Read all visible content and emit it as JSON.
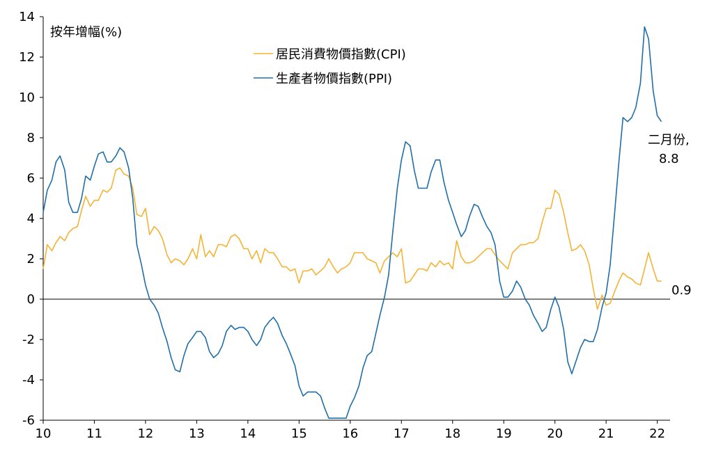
{
  "chart_data": {
    "type": "line",
    "ylabel": "按年增幅(%)",
    "ylim": [
      -6,
      14
    ],
    "yticks": [
      -6,
      -4,
      -2,
      0,
      2,
      4,
      6,
      8,
      10,
      12,
      14
    ],
    "xlim": [
      2010,
      2022.25
    ],
    "xticks": [
      {
        "value": 2010,
        "label": "10"
      },
      {
        "value": 2011,
        "label": "11"
      },
      {
        "value": 2012,
        "label": "12"
      },
      {
        "value": 2013,
        "label": "13"
      },
      {
        "value": 2014,
        "label": "14"
      },
      {
        "value": 2015,
        "label": "15"
      },
      {
        "value": 2016,
        "label": "16"
      },
      {
        "value": 2017,
        "label": "17"
      },
      {
        "value": 2018,
        "label": "18"
      },
      {
        "value": 2019,
        "label": "19"
      },
      {
        "value": 2020,
        "label": "20"
      },
      {
        "value": 2021,
        "label": "21"
      },
      {
        "value": 2022,
        "label": "22"
      }
    ],
    "legend_position": "top-center",
    "series": [
      {
        "name": "居民消費物價指數(CPI)",
        "color": "#f5b335",
        "points": [
          [
            2010.0,
            1.5
          ],
          [
            2010.08,
            2.7
          ],
          [
            2010.17,
            2.4
          ],
          [
            2010.25,
            2.8
          ],
          [
            2010.33,
            3.1
          ],
          [
            2010.42,
            2.9
          ],
          [
            2010.5,
            3.3
          ],
          [
            2010.58,
            3.5
          ],
          [
            2010.67,
            3.6
          ],
          [
            2010.75,
            4.4
          ],
          [
            2010.83,
            5.1
          ],
          [
            2010.92,
            4.6
          ],
          [
            2011.0,
            4.9
          ],
          [
            2011.08,
            4.9
          ],
          [
            2011.17,
            5.4
          ],
          [
            2011.25,
            5.3
          ],
          [
            2011.33,
            5.5
          ],
          [
            2011.42,
            6.4
          ],
          [
            2011.5,
            6.5
          ],
          [
            2011.58,
            6.2
          ],
          [
            2011.67,
            6.1
          ],
          [
            2011.75,
            5.5
          ],
          [
            2011.83,
            4.2
          ],
          [
            2011.92,
            4.1
          ],
          [
            2012.0,
            4.5
          ],
          [
            2012.08,
            3.2
          ],
          [
            2012.17,
            3.6
          ],
          [
            2012.25,
            3.4
          ],
          [
            2012.33,
            3.0
          ],
          [
            2012.42,
            2.2
          ],
          [
            2012.5,
            1.8
          ],
          [
            2012.58,
            2.0
          ],
          [
            2012.67,
            1.9
          ],
          [
            2012.75,
            1.7
          ],
          [
            2012.83,
            2.0
          ],
          [
            2012.92,
            2.5
          ],
          [
            2013.0,
            2.0
          ],
          [
            2013.08,
            3.2
          ],
          [
            2013.17,
            2.1
          ],
          [
            2013.25,
            2.4
          ],
          [
            2013.33,
            2.1
          ],
          [
            2013.42,
            2.7
          ],
          [
            2013.5,
            2.7
          ],
          [
            2013.58,
            2.6
          ],
          [
            2013.67,
            3.1
          ],
          [
            2013.75,
            3.2
          ],
          [
            2013.83,
            3.0
          ],
          [
            2013.92,
            2.5
          ],
          [
            2014.0,
            2.5
          ],
          [
            2014.08,
            2.0
          ],
          [
            2014.17,
            2.4
          ],
          [
            2014.25,
            1.8
          ],
          [
            2014.33,
            2.5
          ],
          [
            2014.42,
            2.3
          ],
          [
            2014.5,
            2.3
          ],
          [
            2014.58,
            2.0
          ],
          [
            2014.67,
            1.6
          ],
          [
            2014.75,
            1.6
          ],
          [
            2014.83,
            1.4
          ],
          [
            2014.92,
            1.5
          ],
          [
            2015.0,
            0.8
          ],
          [
            2015.08,
            1.4
          ],
          [
            2015.17,
            1.4
          ],
          [
            2015.25,
            1.5
          ],
          [
            2015.33,
            1.2
          ],
          [
            2015.42,
            1.4
          ],
          [
            2015.5,
            1.6
          ],
          [
            2015.58,
            2.0
          ],
          [
            2015.67,
            1.6
          ],
          [
            2015.75,
            1.3
          ],
          [
            2015.83,
            1.5
          ],
          [
            2015.92,
            1.6
          ],
          [
            2016.0,
            1.8
          ],
          [
            2016.08,
            2.3
          ],
          [
            2016.17,
            2.3
          ],
          [
            2016.25,
            2.3
          ],
          [
            2016.33,
            2.0
          ],
          [
            2016.42,
            1.9
          ],
          [
            2016.5,
            1.8
          ],
          [
            2016.58,
            1.3
          ],
          [
            2016.67,
            1.9
          ],
          [
            2016.75,
            2.1
          ],
          [
            2016.83,
            2.3
          ],
          [
            2016.92,
            2.1
          ],
          [
            2017.0,
            2.5
          ],
          [
            2017.08,
            0.8
          ],
          [
            2017.17,
            0.9
          ],
          [
            2017.25,
            1.2
          ],
          [
            2017.33,
            1.5
          ],
          [
            2017.42,
            1.5
          ],
          [
            2017.5,
            1.4
          ],
          [
            2017.58,
            1.8
          ],
          [
            2017.67,
            1.6
          ],
          [
            2017.75,
            1.9
          ],
          [
            2017.83,
            1.7
          ],
          [
            2017.92,
            1.8
          ],
          [
            2018.0,
            1.5
          ],
          [
            2018.08,
            2.9
          ],
          [
            2018.17,
            2.1
          ],
          [
            2018.25,
            1.8
          ],
          [
            2018.33,
            1.8
          ],
          [
            2018.42,
            1.9
          ],
          [
            2018.5,
            2.1
          ],
          [
            2018.58,
            2.3
          ],
          [
            2018.67,
            2.5
          ],
          [
            2018.75,
            2.5
          ],
          [
            2018.83,
            2.2
          ],
          [
            2018.92,
            1.9
          ],
          [
            2019.0,
            1.7
          ],
          [
            2019.08,
            1.5
          ],
          [
            2019.17,
            2.3
          ],
          [
            2019.25,
            2.5
          ],
          [
            2019.33,
            2.7
          ],
          [
            2019.42,
            2.7
          ],
          [
            2019.5,
            2.8
          ],
          [
            2019.58,
            2.8
          ],
          [
            2019.67,
            3.0
          ],
          [
            2019.75,
            3.8
          ],
          [
            2019.83,
            4.5
          ],
          [
            2019.92,
            4.5
          ],
          [
            2020.0,
            5.4
          ],
          [
            2020.08,
            5.2
          ],
          [
            2020.17,
            4.3
          ],
          [
            2020.25,
            3.3
          ],
          [
            2020.33,
            2.4
          ],
          [
            2020.42,
            2.5
          ],
          [
            2020.5,
            2.7
          ],
          [
            2020.58,
            2.4
          ],
          [
            2020.67,
            1.7
          ],
          [
            2020.75,
            0.5
          ],
          [
            2020.83,
            -0.5
          ],
          [
            2020.92,
            0.2
          ],
          [
            2021.0,
            -0.3
          ],
          [
            2021.08,
            -0.2
          ],
          [
            2021.17,
            0.4
          ],
          [
            2021.25,
            0.9
          ],
          [
            2021.33,
            1.3
          ],
          [
            2021.42,
            1.1
          ],
          [
            2021.5,
            1.0
          ],
          [
            2021.58,
            0.8
          ],
          [
            2021.67,
            0.7
          ],
          [
            2021.75,
            1.5
          ],
          [
            2021.83,
            2.3
          ],
          [
            2021.92,
            1.5
          ],
          [
            2022.0,
            0.9
          ],
          [
            2022.08,
            0.9
          ]
        ]
      },
      {
        "name": "生產者物價指數(PPI)",
        "color": "#1f6ea8",
        "points": [
          [
            2010.0,
            4.3
          ],
          [
            2010.08,
            5.4
          ],
          [
            2010.17,
            5.9
          ],
          [
            2010.25,
            6.8
          ],
          [
            2010.33,
            7.1
          ],
          [
            2010.42,
            6.4
          ],
          [
            2010.5,
            4.8
          ],
          [
            2010.58,
            4.3
          ],
          [
            2010.67,
            4.3
          ],
          [
            2010.75,
            5.0
          ],
          [
            2010.83,
            6.1
          ],
          [
            2010.92,
            5.9
          ],
          [
            2011.0,
            6.6
          ],
          [
            2011.08,
            7.2
          ],
          [
            2011.17,
            7.3
          ],
          [
            2011.25,
            6.8
          ],
          [
            2011.33,
            6.8
          ],
          [
            2011.42,
            7.1
          ],
          [
            2011.5,
            7.5
          ],
          [
            2011.58,
            7.3
          ],
          [
            2011.67,
            6.5
          ],
          [
            2011.75,
            5.0
          ],
          [
            2011.83,
            2.7
          ],
          [
            2011.92,
            1.7
          ],
          [
            2012.0,
            0.7
          ],
          [
            2012.08,
            0.0
          ],
          [
            2012.17,
            -0.3
          ],
          [
            2012.25,
            -0.7
          ],
          [
            2012.33,
            -1.4
          ],
          [
            2012.42,
            -2.1
          ],
          [
            2012.5,
            -2.9
          ],
          [
            2012.58,
            -3.5
          ],
          [
            2012.67,
            -3.6
          ],
          [
            2012.75,
            -2.8
          ],
          [
            2012.83,
            -2.2
          ],
          [
            2012.92,
            -1.9
          ],
          [
            2013.0,
            -1.6
          ],
          [
            2013.08,
            -1.6
          ],
          [
            2013.17,
            -1.9
          ],
          [
            2013.25,
            -2.6
          ],
          [
            2013.33,
            -2.9
          ],
          [
            2013.42,
            -2.7
          ],
          [
            2013.5,
            -2.3
          ],
          [
            2013.58,
            -1.6
          ],
          [
            2013.67,
            -1.3
          ],
          [
            2013.75,
            -1.5
          ],
          [
            2013.83,
            -1.4
          ],
          [
            2013.92,
            -1.4
          ],
          [
            2014.0,
            -1.6
          ],
          [
            2014.08,
            -2.0
          ],
          [
            2014.17,
            -2.3
          ],
          [
            2014.25,
            -2.0
          ],
          [
            2014.33,
            -1.4
          ],
          [
            2014.42,
            -1.1
          ],
          [
            2014.5,
            -0.9
          ],
          [
            2014.58,
            -1.2
          ],
          [
            2014.67,
            -1.8
          ],
          [
            2014.75,
            -2.2
          ],
          [
            2014.83,
            -2.7
          ],
          [
            2014.92,
            -3.3
          ],
          [
            2015.0,
            -4.3
          ],
          [
            2015.08,
            -4.8
          ],
          [
            2015.17,
            -4.6
          ],
          [
            2015.25,
            -4.6
          ],
          [
            2015.33,
            -4.6
          ],
          [
            2015.42,
            -4.8
          ],
          [
            2015.5,
            -5.4
          ],
          [
            2015.58,
            -5.9
          ],
          [
            2015.67,
            -5.9
          ],
          [
            2015.75,
            -5.9
          ],
          [
            2015.83,
            -5.9
          ],
          [
            2015.92,
            -5.9
          ],
          [
            2016.0,
            -5.3
          ],
          [
            2016.08,
            -4.9
          ],
          [
            2016.17,
            -4.3
          ],
          [
            2016.25,
            -3.4
          ],
          [
            2016.33,
            -2.8
          ],
          [
            2016.42,
            -2.6
          ],
          [
            2016.5,
            -1.7
          ],
          [
            2016.58,
            -0.8
          ],
          [
            2016.67,
            0.1
          ],
          [
            2016.75,
            1.2
          ],
          [
            2016.83,
            3.3
          ],
          [
            2016.92,
            5.5
          ],
          [
            2017.0,
            6.9
          ],
          [
            2017.08,
            7.8
          ],
          [
            2017.17,
            7.6
          ],
          [
            2017.25,
            6.4
          ],
          [
            2017.33,
            5.5
          ],
          [
            2017.42,
            5.5
          ],
          [
            2017.5,
            5.5
          ],
          [
            2017.58,
            6.3
          ],
          [
            2017.67,
            6.9
          ],
          [
            2017.75,
            6.9
          ],
          [
            2017.83,
            5.8
          ],
          [
            2017.92,
            4.9
          ],
          [
            2018.0,
            4.3
          ],
          [
            2018.08,
            3.7
          ],
          [
            2018.17,
            3.1
          ],
          [
            2018.25,
            3.4
          ],
          [
            2018.33,
            4.1
          ],
          [
            2018.42,
            4.7
          ],
          [
            2018.5,
            4.6
          ],
          [
            2018.58,
            4.1
          ],
          [
            2018.67,
            3.6
          ],
          [
            2018.75,
            3.3
          ],
          [
            2018.83,
            2.7
          ],
          [
            2018.92,
            0.9
          ],
          [
            2019.0,
            0.1
          ],
          [
            2019.08,
            0.1
          ],
          [
            2019.17,
            0.4
          ],
          [
            2019.25,
            0.9
          ],
          [
            2019.33,
            0.6
          ],
          [
            2019.42,
            0.0
          ],
          [
            2019.5,
            -0.3
          ],
          [
            2019.58,
            -0.8
          ],
          [
            2019.67,
            -1.2
          ],
          [
            2019.75,
            -1.6
          ],
          [
            2019.83,
            -1.4
          ],
          [
            2019.92,
            -0.5
          ],
          [
            2020.0,
            0.1
          ],
          [
            2020.08,
            -0.4
          ],
          [
            2020.17,
            -1.5
          ],
          [
            2020.25,
            -3.1
          ],
          [
            2020.33,
            -3.7
          ],
          [
            2020.42,
            -3.0
          ],
          [
            2020.5,
            -2.4
          ],
          [
            2020.58,
            -2.0
          ],
          [
            2020.67,
            -2.1
          ],
          [
            2020.75,
            -2.1
          ],
          [
            2020.83,
            -1.5
          ],
          [
            2020.92,
            -0.4
          ],
          [
            2021.0,
            0.3
          ],
          [
            2021.08,
            1.7
          ],
          [
            2021.17,
            4.4
          ],
          [
            2021.25,
            6.8
          ],
          [
            2021.33,
            9.0
          ],
          [
            2021.42,
            8.8
          ],
          [
            2021.5,
            9.0
          ],
          [
            2021.58,
            9.5
          ],
          [
            2021.67,
            10.7
          ],
          [
            2021.75,
            13.5
          ],
          [
            2021.83,
            12.9
          ],
          [
            2021.92,
            10.3
          ],
          [
            2022.0,
            9.1
          ],
          [
            2022.08,
            8.8
          ]
        ]
      }
    ],
    "annotations": [
      {
        "name": "ppi-end-label-1",
        "text": "二月份,",
        "series": 1
      },
      {
        "name": "ppi-end-label-2",
        "text": "8.8",
        "series": 1
      },
      {
        "name": "cpi-end-label",
        "text": "0.9",
        "series": 0
      }
    ]
  }
}
